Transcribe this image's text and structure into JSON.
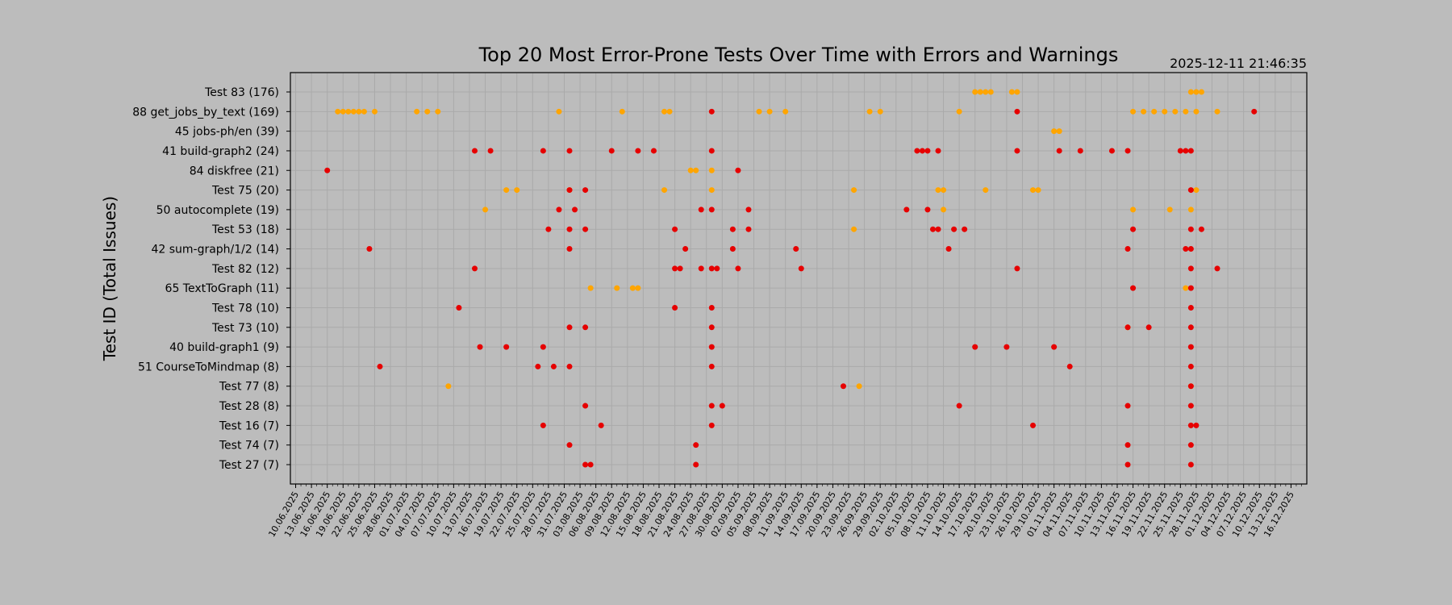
{
  "chart_data": {
    "type": "scatter",
    "title": "Top 20 Most Error-Prone Tests Over Time with Errors and Warnings",
    "timestamp": "2025-12-11 21:46:35",
    "ylabel": "Test ID (Total Issues)",
    "xlabel": "",
    "grid": true,
    "xlim": [
      "2025-06-09",
      "2025-12-19"
    ],
    "x_tick_labels": [
      "10.06.2025",
      "13.06.2025",
      "16.06.2025",
      "19.06.2025",
      "22.06.2025",
      "25.06.2025",
      "28.06.2025",
      "01.07.2025",
      "04.07.2025",
      "07.07.2025",
      "10.07.2025",
      "13.07.2025",
      "16.07.2025",
      "19.07.2025",
      "22.07.2025",
      "25.07.2025",
      "28.07.2025",
      "31.07.2025",
      "03.08.2025",
      "06.08.2025",
      "09.08.2025",
      "12.08.2025",
      "15.08.2025",
      "18.08.2025",
      "21.08.2025",
      "24.08.2025",
      "27.08.2025",
      "30.08.2025",
      "02.09.2025",
      "05.09.2025",
      "08.09.2025",
      "11.09.2025",
      "14.09.2025",
      "17.09.2025",
      "20.09.2025",
      "23.09.2025",
      "26.09.2025",
      "29.09.2025",
      "02.10.2025",
      "05.10.2025",
      "08.10.2025",
      "11.10.2025",
      "14.10.2025",
      "17.10.2025",
      "20.10.2025",
      "23.10.2025",
      "26.10.2025",
      "29.10.2025",
      "01.11.2025",
      "04.11.2025",
      "07.11.2025",
      "10.11.2025",
      "13.11.2025",
      "16.11.2025",
      "19.11.2025",
      "22.11.2025",
      "25.11.2025",
      "28.11.2025",
      "01.12.2025",
      "04.12.2025",
      "07.12.2025",
      "10.12.2025",
      "13.12.2025",
      "16.12.2025"
    ],
    "categories": [
      "Test 83 (176)",
      "88 get_jobs_by_text (169)",
      "45 jobs-ph/en (39)",
      "41 build-graph2 (24)",
      "84 diskfree (21)",
      "Test 75 (20)",
      "50 autocomplete (19)",
      "Test 53 (18)",
      "42 sum-graph/1/2 (14)",
      "Test 82 (12)",
      "65 TextToGraph (11)",
      "Test 78 (10)",
      "Test 73 (10)",
      "40 build-graph1 (9)",
      "51 CourseToMindmap (8)",
      "Test 77 (8)",
      "Test 28 (8)",
      "Test 16 (7)",
      "Test 74 (7)",
      "Test 27 (7)"
    ],
    "series": [
      {
        "kind": "error",
        "color": "#e60000",
        "points": [
          [
            "88 get_jobs_by_text (169)",
            [
              "2025-08-28",
              "2025-10-25",
              "2025-12-09"
            ]
          ],
          [
            "41 build-graph2 (24)",
            [
              "2025-07-14",
              "2025-07-17",
              "2025-07-27",
              "2025-08-01",
              "2025-08-09",
              "2025-08-14",
              "2025-08-17",
              "2025-08-28",
              "2025-10-06",
              "2025-10-07",
              "2025-10-08",
              "2025-10-10",
              "2025-10-25",
              "2025-11-02",
              "2025-11-06",
              "2025-11-12",
              "2025-11-15",
              "2025-11-25",
              "2025-11-26",
              "2025-11-27"
            ]
          ],
          [
            "84 diskfree (21)",
            [
              "2025-06-16",
              "2025-09-02"
            ]
          ],
          [
            "Test 75 (20)",
            [
              "2025-08-01",
              "2025-08-04",
              "2025-11-27"
            ]
          ],
          [
            "50 autocomplete (19)",
            [
              "2025-07-30",
              "2025-08-02",
              "2025-08-26",
              "2025-08-28",
              "2025-09-04",
              "2025-10-04",
              "2025-10-08"
            ]
          ],
          [
            "Test 53 (18)",
            [
              "2025-07-28",
              "2025-08-01",
              "2025-08-04",
              "2025-08-21",
              "2025-09-01",
              "2025-09-04",
              "2025-10-09",
              "2025-10-10",
              "2025-10-13",
              "2025-10-15",
              "2025-11-16",
              "2025-11-27",
              "2025-11-29"
            ]
          ],
          [
            "42 sum-graph/1/2 (14)",
            [
              "2025-06-24",
              "2025-08-01",
              "2025-08-23",
              "2025-09-01",
              "2025-09-13",
              "2025-10-12",
              "2025-11-15",
              "2025-11-26",
              "2025-11-27"
            ]
          ],
          [
            "Test 82 (12)",
            [
              "2025-07-14",
              "2025-08-21",
              "2025-08-22",
              "2025-08-26",
              "2025-08-28",
              "2025-08-29",
              "2025-09-02",
              "2025-09-14",
              "2025-10-25",
              "2025-11-27",
              "2025-12-02"
            ]
          ],
          [
            "65 TextToGraph (11)",
            [
              "2025-11-16",
              "2025-11-27"
            ]
          ],
          [
            "Test 78 (10)",
            [
              "2025-07-11",
              "2025-08-21",
              "2025-08-28",
              "2025-11-27"
            ]
          ],
          [
            "Test 73 (10)",
            [
              "2025-08-01",
              "2025-08-04",
              "2025-08-28",
              "2025-11-15",
              "2025-11-19",
              "2025-11-27"
            ]
          ],
          [
            "40 build-graph1 (9)",
            [
              "2025-07-15",
              "2025-07-20",
              "2025-07-27",
              "2025-08-28",
              "2025-10-17",
              "2025-10-23",
              "2025-11-01",
              "2025-11-27"
            ]
          ],
          [
            "51 CourseToMindmap (8)",
            [
              "2025-06-26",
              "2025-07-26",
              "2025-07-29",
              "2025-08-01",
              "2025-08-28",
              "2025-11-04",
              "2025-11-27"
            ]
          ],
          [
            "Test 77 (8)",
            [
              "2025-09-22",
              "2025-11-27"
            ]
          ],
          [
            "Test 28 (8)",
            [
              "2025-08-04",
              "2025-08-28",
              "2025-08-30",
              "2025-10-14",
              "2025-11-15",
              "2025-11-27"
            ]
          ],
          [
            "Test 16 (7)",
            [
              "2025-07-27",
              "2025-08-07",
              "2025-08-28",
              "2025-10-28",
              "2025-11-27",
              "2025-11-28"
            ]
          ],
          [
            "Test 74 (7)",
            [
              "2025-08-01",
              "2025-08-25",
              "2025-11-15",
              "2025-11-27"
            ]
          ],
          [
            "Test 27 (7)",
            [
              "2025-08-04",
              "2025-08-05",
              "2025-08-25",
              "2025-11-15",
              "2025-11-27"
            ]
          ]
        ]
      },
      {
        "kind": "warning",
        "color": "#ffa500",
        "points": [
          [
            "Test 83 (176)",
            [
              "2025-10-17",
              "2025-10-18",
              "2025-10-19",
              "2025-10-20",
              "2025-10-24",
              "2025-10-25",
              "2025-11-27",
              "2025-11-28",
              "2025-11-29"
            ]
          ],
          [
            "88 get_jobs_by_text (169)",
            [
              "2025-06-18",
              "2025-06-19",
              "2025-06-20",
              "2025-06-21",
              "2025-06-22",
              "2025-06-23",
              "2025-06-25",
              "2025-07-03",
              "2025-07-05",
              "2025-07-07",
              "2025-07-30",
              "2025-08-11",
              "2025-08-19",
              "2025-08-20",
              "2025-09-06",
              "2025-09-08",
              "2025-09-11",
              "2025-09-27",
              "2025-09-29",
              "2025-10-14",
              "2025-11-16",
              "2025-11-18",
              "2025-11-20",
              "2025-11-22",
              "2025-11-24",
              "2025-11-26",
              "2025-11-28",
              "2025-12-02"
            ]
          ],
          [
            "45 jobs-ph/en (39)",
            [
              "2025-11-01",
              "2025-11-02"
            ]
          ],
          [
            "84 diskfree (21)",
            [
              "2025-08-24",
              "2025-08-25",
              "2025-08-28"
            ]
          ],
          [
            "Test 75 (20)",
            [
              "2025-07-20",
              "2025-07-22",
              "2025-08-01",
              "2025-08-19",
              "2025-08-28",
              "2025-09-24",
              "2025-10-10",
              "2025-10-11",
              "2025-10-19",
              "2025-10-28",
              "2025-10-29",
              "2025-11-28"
            ]
          ],
          [
            "50 autocomplete (19)",
            [
              "2025-07-16",
              "2025-10-11",
              "2025-11-16",
              "2025-11-23",
              "2025-11-27"
            ]
          ],
          [
            "Test 53 (18)",
            [
              "2025-09-24"
            ]
          ],
          [
            "65 TextToGraph (11)",
            [
              "2025-08-05",
              "2025-08-10",
              "2025-08-13",
              "2025-08-14",
              "2025-11-26"
            ]
          ],
          [
            "Test 73 (10)",
            [
              "2025-11-15"
            ]
          ],
          [
            "Test 77 (8)",
            [
              "2025-07-09",
              "2025-09-25",
              "2025-11-27"
            ]
          ]
        ]
      }
    ]
  }
}
